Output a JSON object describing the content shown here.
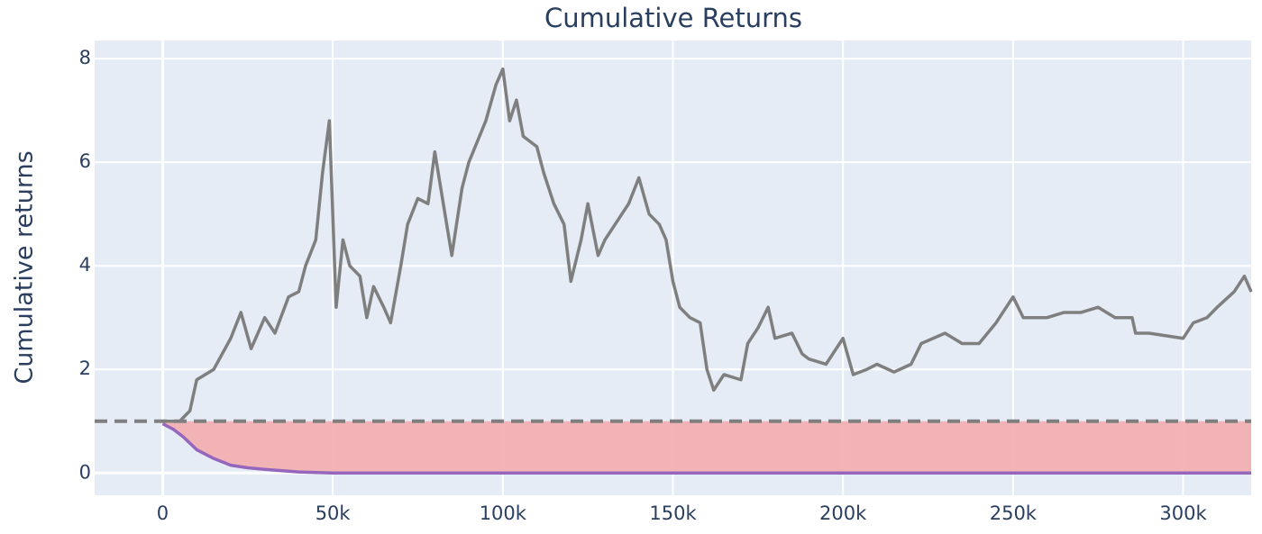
{
  "chart_data": {
    "type": "line",
    "title": "Cumulative Returns",
    "y_label": "Cumulative returns",
    "xlim": [
      -20000,
      320000
    ],
    "ylim": [
      -0.43,
      8.35
    ],
    "xticks": [
      0,
      {
        "value": 50000,
        "label": "50k"
      },
      {
        "value": 100000,
        "label": "100k"
      },
      {
        "value": 150000,
        "label": "150k"
      },
      {
        "value": 200000,
        "label": "200k"
      },
      {
        "value": 250000,
        "label": "250k"
      },
      {
        "value": 300000,
        "label": "300k"
      }
    ],
    "yticks": [
      0,
      2,
      4,
      6,
      8
    ],
    "grid": true,
    "hline": 1,
    "hline_color": "#7f7f7f",
    "fill_color": "#f2b0b3",
    "series": [
      {
        "color": "#7f7f7f",
        "x": [
          0,
          5000,
          8000,
          10000,
          15000,
          20000,
          23000,
          26000,
          30000,
          33000,
          37000,
          40000,
          42000,
          45000,
          47000,
          49000,
          50000,
          51000,
          53000,
          55000,
          58000,
          60000,
          62000,
          65000,
          67000,
          70000,
          72000,
          75000,
          78000,
          80000,
          83000,
          85000,
          88000,
          90000,
          95000,
          98000,
          100000,
          102000,
          104000,
          106000,
          110000,
          112000,
          115000,
          118000,
          120000,
          123000,
          125000,
          128000,
          130000,
          133000,
          137000,
          140000,
          143000,
          146000,
          148000,
          150000,
          152000,
          155000,
          158000,
          160000,
          162000,
          165000,
          170000,
          172000,
          175000,
          178000,
          180000,
          185000,
          188000,
          190000,
          195000,
          200000,
          203000,
          207000,
          210000,
          215000,
          220000,
          223000,
          230000,
          235000,
          240000,
          245000,
          250000,
          253000,
          260000,
          265000,
          270000,
          275000,
          280000,
          285000,
          286000,
          290000,
          300000,
          303000,
          307000,
          310000,
          315000,
          318000,
          320000
        ],
        "values": [
          1,
          1,
          1.2,
          1.8,
          2.0,
          2.6,
          3.1,
          2.4,
          3.0,
          2.7,
          3.4,
          3.5,
          4.0,
          4.5,
          5.8,
          6.8,
          5.0,
          3.2,
          4.5,
          4.0,
          3.8,
          3.0,
          3.6,
          3.2,
          2.9,
          4.0,
          4.8,
          5.3,
          5.2,
          6.2,
          5.0,
          4.2,
          5.5,
          6.0,
          6.8,
          7.5,
          7.8,
          6.8,
          7.2,
          6.5,
          6.3,
          5.8,
          5.2,
          4.8,
          3.7,
          4.5,
          5.2,
          4.2,
          4.5,
          4.8,
          5.2,
          5.7,
          5.0,
          4.8,
          4.5,
          3.7,
          3.2,
          3.0,
          2.9,
          2.0,
          1.6,
          1.9,
          1.8,
          2.5,
          2.8,
          3.2,
          2.6,
          2.7,
          2.3,
          2.2,
          2.1,
          2.6,
          1.9,
          2.0,
          2.1,
          1.95,
          2.1,
          2.5,
          2.7,
          2.5,
          2.5,
          2.9,
          3.4,
          3.0,
          3.0,
          3.1,
          3.1,
          3.2,
          3.0,
          3.0,
          2.7,
          2.7,
          2.6,
          2.9,
          3.0,
          3.2,
          3.5,
          3.8,
          3.5
        ]
      },
      {
        "color": "#9467bd",
        "x": [
          0,
          3000,
          6000,
          10000,
          15000,
          20000,
          25000,
          30000,
          40000,
          50000,
          100000,
          200000,
          320000
        ],
        "values": [
          0.95,
          0.85,
          0.7,
          0.45,
          0.28,
          0.15,
          0.1,
          0.07,
          0.02,
          0,
          0,
          0,
          0
        ]
      }
    ]
  }
}
